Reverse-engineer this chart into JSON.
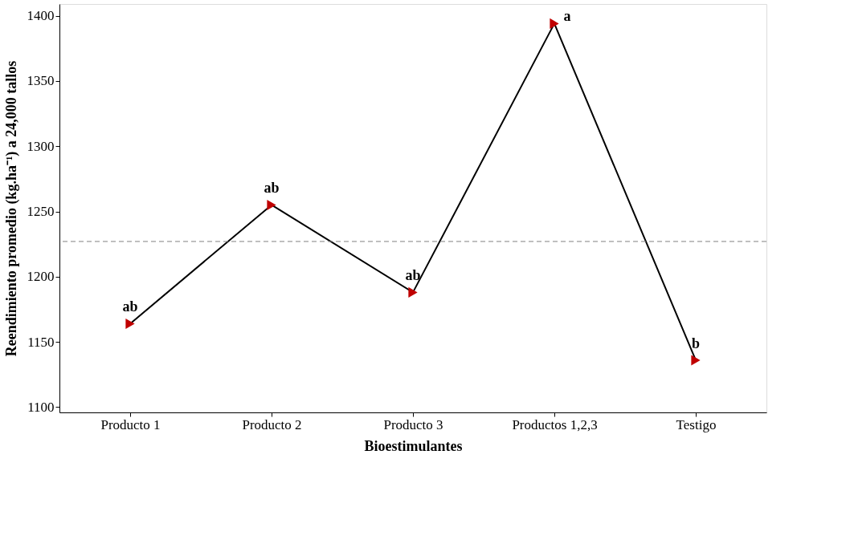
{
  "chart_data": {
    "type": "line",
    "xlabel": "Bioestimulantes",
    "ylabel": "Reendimiento promedio (kg.ha⁻¹) a 24,000 tallos",
    "categories": [
      "Producto 1",
      "Producto 2",
      "Producto 3",
      "Productos 1,2,3",
      "Testigo"
    ],
    "series": [
      {
        "color": "#c00000",
        "values": [
          1164,
          1255,
          1188,
          1394,
          1136
        ]
      }
    ],
    "ylim": [
      1096,
      1409
    ],
    "yticks": [
      1100,
      1150,
      1200,
      1250,
      1300,
      1350,
      1400
    ],
    "ref_lines": [
      {
        "axis": "y",
        "value": 1227,
        "color": "#808080",
        "line_style": "dashed"
      }
    ],
    "annotations": [
      {
        "text": "ab",
        "x": "Producto 1",
        "y": 1164
      },
      {
        "text": "ab",
        "x": "Producto 2",
        "y": 1255
      },
      {
        "text": "ab",
        "x": "Producto 3",
        "y": 1188
      },
      {
        "text": "a",
        "x": "Productos 1,2,3",
        "y": 1394
      },
      {
        "text": "b",
        "x": "Testigo",
        "y": 1136
      }
    ],
    "marker": "triangle",
    "line_style": "solid",
    "grid": false
  }
}
